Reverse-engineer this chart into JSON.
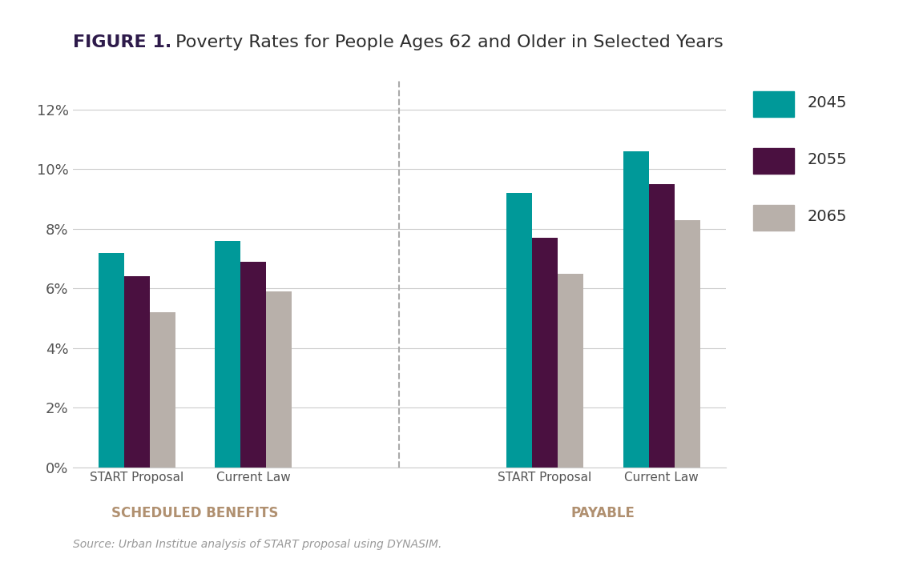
{
  "title_bold": "FIGURE 1.",
  "title_regular": " Poverty Rates for People Ages 62 and Older in Selected Years",
  "groups": [
    "START Proposal",
    "Current Law",
    "START Proposal",
    "Current Law"
  ],
  "section_labels": [
    "SCHEDULED BENEFITS",
    "PAYABLE"
  ],
  "series_labels": [
    "2045",
    "2055",
    "2065"
  ],
  "colors": [
    "#009999",
    "#4a1040",
    "#b8b0aa"
  ],
  "values": {
    "2045": [
      7.2,
      7.6,
      9.2,
      10.6
    ],
    "2055": [
      6.4,
      6.9,
      7.7,
      9.5
    ],
    "2065": [
      5.2,
      5.9,
      6.5,
      8.3
    ]
  },
  "ylim": [
    0,
    13
  ],
  "yticks": [
    0,
    2,
    4,
    6,
    8,
    10,
    12
  ],
  "ytick_labels": [
    "0%",
    "2%",
    "4%",
    "6%",
    "8%",
    "10%",
    "12%"
  ],
  "background_color": "#ffffff",
  "grid_color": "#cccccc",
  "source_text": "Source: Urban Institue analysis of START proposal using DYNASIM.",
  "title_bold_color": "#2d1a4a",
  "title_regular_color": "#2d2d2d",
  "section_label_color": "#b09070",
  "axis_label_color": "#555555",
  "legend_label_color": "#2d2d2d"
}
